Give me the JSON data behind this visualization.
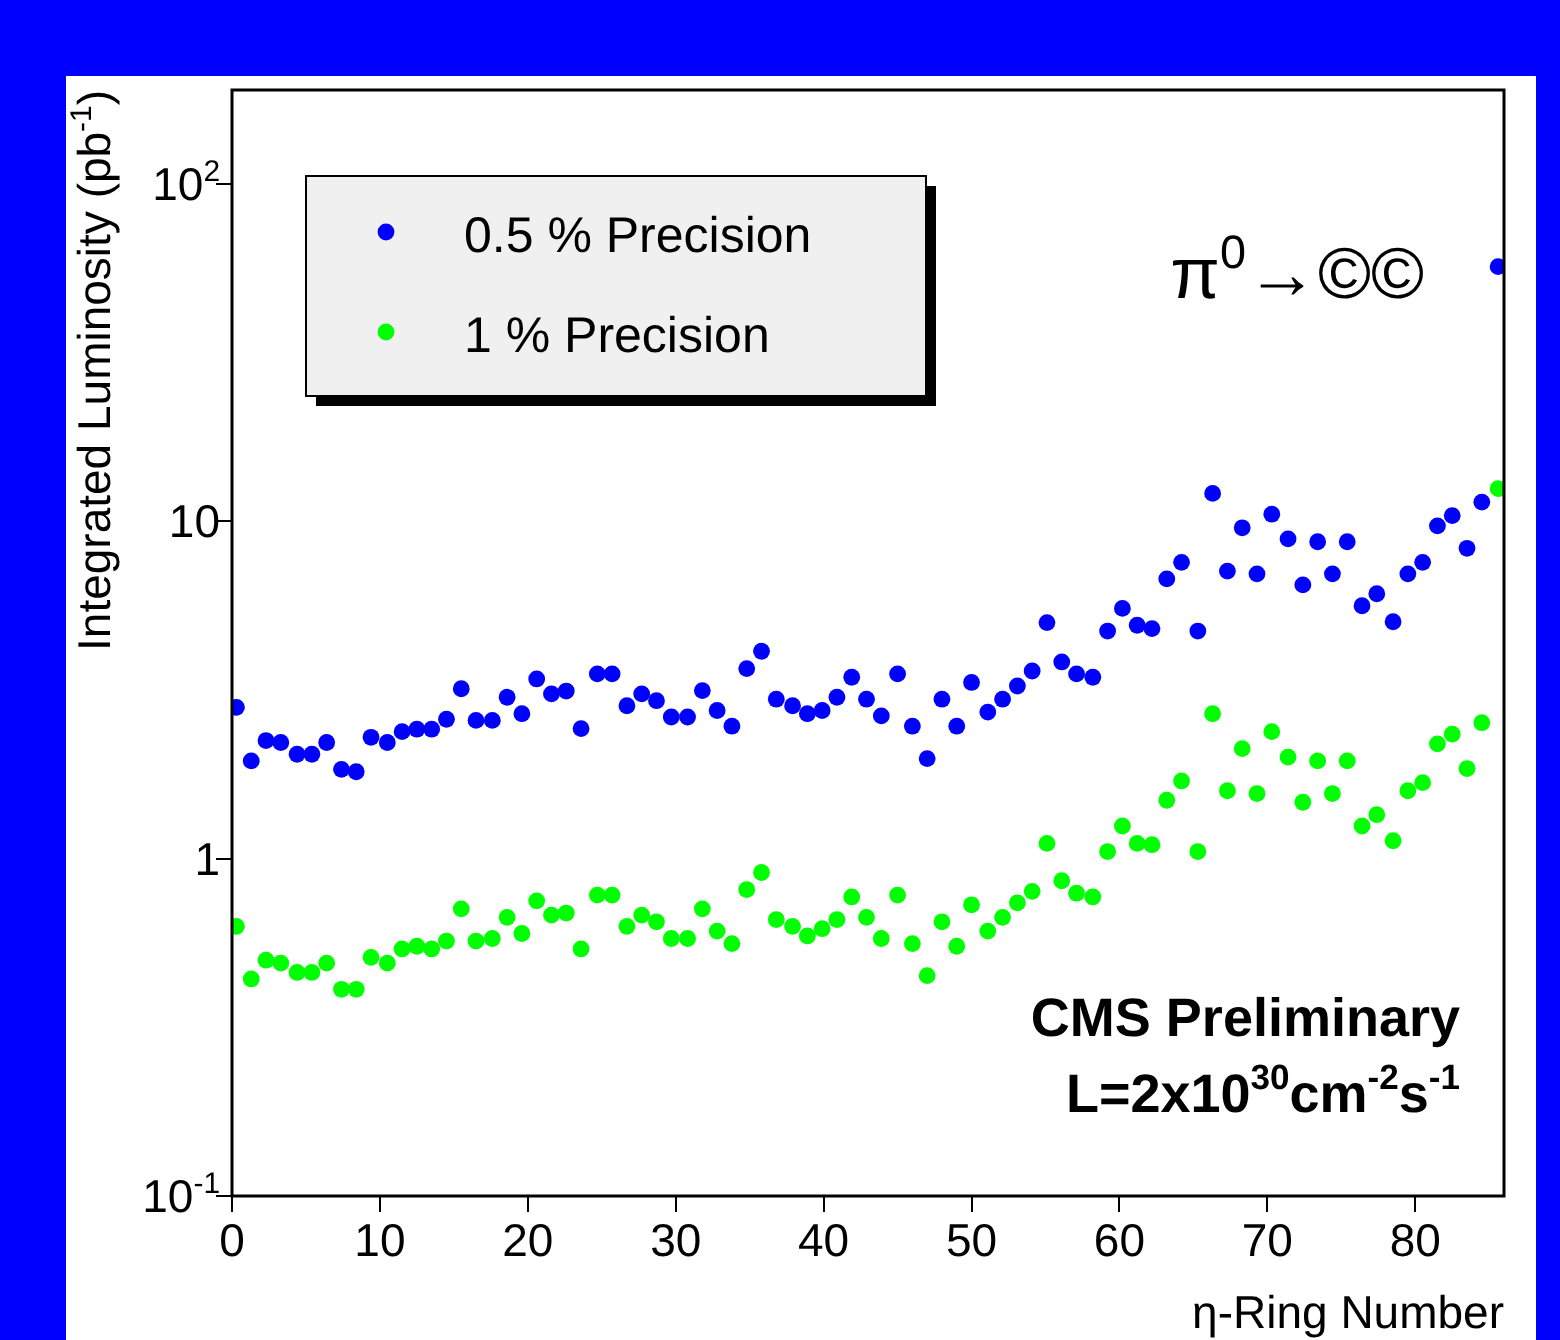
{
  "chart_data": {
    "type": "scatter",
    "xlabel": "η-Ring Number",
    "ylabel": "Integrated Luminosity (pb$^{-1}$)",
    "x": [
      0.3,
      1.3,
      2.3,
      3.3,
      4.4,
      5.4,
      6.4,
      7.4,
      8.4,
      9.4,
      10.5,
      11.5,
      12.5,
      13.5,
      14.5,
      15.5,
      16.5,
      17.6,
      18.6,
      19.6,
      20.6,
      21.6,
      22.6,
      23.6,
      24.7,
      25.7,
      26.7,
      27.7,
      28.7,
      29.7,
      30.8,
      31.8,
      32.8,
      33.8,
      34.8,
      35.8,
      36.8,
      37.9,
      38.9,
      39.9,
      40.9,
      41.9,
      42.9,
      43.9,
      45.0,
      46.0,
      47.0,
      48.0,
      49.0,
      50.0,
      51.1,
      52.1,
      53.1,
      54.1,
      55.1,
      56.1,
      57.1,
      58.2,
      59.2,
      60.2,
      61.2,
      62.2,
      63.2,
      64.2,
      65.3,
      66.3,
      67.3,
      68.3,
      69.3,
      70.3,
      71.4,
      72.4,
      73.4,
      74.4,
      75.4,
      76.4,
      77.4,
      78.5,
      79.5,
      80.5,
      81.5,
      82.5,
      83.5,
      84.5,
      85.6
    ],
    "series": [
      {
        "name": "0.5 % Precision",
        "color": "#0000ff",
        "values": [
          2.81,
          1.95,
          2.24,
          2.21,
          2.04,
          2.04,
          2.21,
          1.84,
          1.81,
          2.29,
          2.21,
          2.38,
          2.42,
          2.42,
          2.59,
          3.19,
          2.57,
          2.57,
          3.01,
          2.69,
          3.41,
          3.08,
          3.14,
          2.43,
          3.53,
          3.53,
          2.84,
          3.08,
          2.94,
          2.63,
          2.63,
          3.15,
          2.75,
          2.47,
          3.66,
          4.12,
          2.97,
          2.84,
          2.69,
          2.75,
          3.01,
          3.45,
          2.97,
          2.65,
          3.53,
          2.47,
          1.98,
          2.97,
          2.47,
          3.33,
          2.72,
          2.97,
          3.25,
          3.6,
          5.01,
          3.83,
          3.53,
          3.45,
          4.73,
          5.52,
          4.92,
          4.81,
          6.75,
          7.56,
          4.73,
          12.1,
          7.12,
          9.57,
          6.99,
          10.5,
          8.87,
          6.48,
          8.7,
          6.99,
          8.7,
          5.62,
          6.1,
          5.04,
          6.99,
          7.56,
          9.7,
          10.4,
          8.32,
          11.4,
          56.9
        ]
      },
      {
        "name": "1 % Precision",
        "color": "#00ff00",
        "values": [
          0.63,
          0.44,
          0.5,
          0.49,
          0.46,
          0.46,
          0.49,
          0.41,
          0.41,
          0.51,
          0.49,
          0.54,
          0.55,
          0.54,
          0.57,
          0.71,
          0.57,
          0.58,
          0.67,
          0.6,
          0.75,
          0.68,
          0.69,
          0.54,
          0.78,
          0.78,
          0.63,
          0.68,
          0.65,
          0.58,
          0.58,
          0.71,
          0.61,
          0.56,
          0.81,
          0.91,
          0.66,
          0.63,
          0.59,
          0.62,
          0.66,
          0.77,
          0.67,
          0.58,
          0.78,
          0.56,
          0.45,
          0.65,
          0.55,
          0.73,
          0.61,
          0.67,
          0.74,
          0.8,
          1.11,
          0.86,
          0.79,
          0.77,
          1.05,
          1.25,
          1.11,
          1.1,
          1.49,
          1.7,
          1.05,
          2.69,
          1.59,
          2.12,
          1.56,
          2.38,
          2.0,
          1.47,
          1.95,
          1.56,
          1.95,
          1.25,
          1.35,
          1.13,
          1.59,
          1.68,
          2.19,
          2.34,
          1.85,
          2.53,
          12.5
        ]
      }
    ],
    "xlim": [
      0,
      86
    ],
    "xticks": [
      0,
      10,
      20,
      30,
      40,
      50,
      60,
      70,
      80
    ],
    "ylim": [
      0.1,
      190
    ],
    "yticks": [
      {
        "value": 0.1,
        "label": "10$^{-1}$"
      },
      1,
      10,
      {
        "value": 100,
        "label": "10$^{2}$"
      }
    ],
    "log": "y",
    "grid": false,
    "legend": "top left",
    "marker": "circle",
    "annotations": [
      "π$^{0}$→©©",
      "CMS Preliminary",
      "L=2x10$^{30}$cm$^{-2}$s$^{-1}$"
    ]
  }
}
